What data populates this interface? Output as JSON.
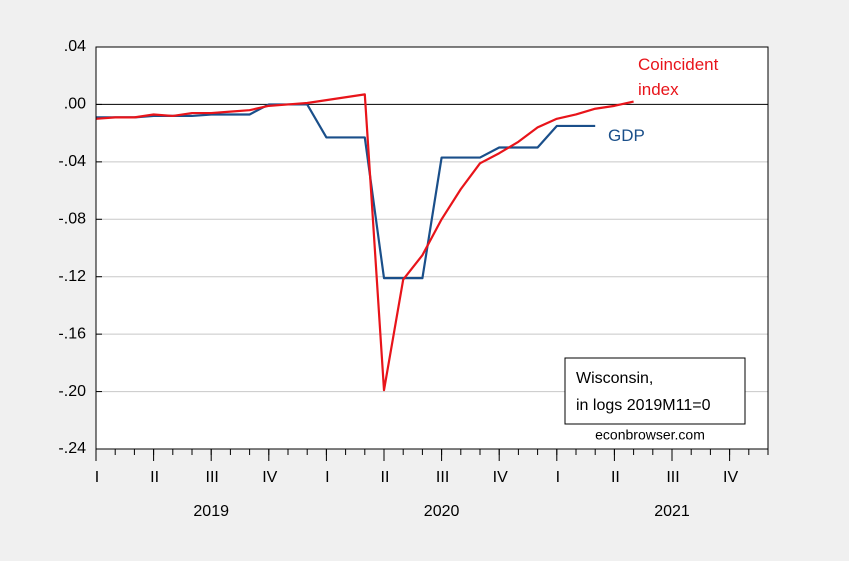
{
  "chart_data": {
    "type": "line",
    "x": [
      "2019-01",
      "2019-02",
      "2019-03",
      "2019-04",
      "2019-05",
      "2019-06",
      "2019-07",
      "2019-08",
      "2019-09",
      "2019-10",
      "2019-11",
      "2019-12",
      "2020-01",
      "2020-02",
      "2020-03",
      "2020-04",
      "2020-05",
      "2020-06",
      "2020-07",
      "2020-08",
      "2020-09",
      "2020-10",
      "2020-11",
      "2020-12",
      "2021-01",
      "2021-02",
      "2021-03",
      "2021-04",
      "2021-05",
      "2021-06",
      "2021-07",
      "2021-08",
      "2021-09",
      "2021-10",
      "2021-11",
      "2021-12"
    ],
    "series": [
      {
        "name": "Coincident index",
        "color": "#e8141a",
        "values": [
          -0.01,
          -0.009,
          -0.009,
          -0.007,
          -0.008,
          -0.006,
          -0.006,
          -0.005,
          -0.004,
          -0.001,
          0.0,
          0.001,
          0.003,
          0.005,
          0.007,
          -0.199,
          -0.122,
          -0.105,
          -0.08,
          -0.059,
          -0.041,
          -0.034,
          -0.026,
          -0.016,
          -0.01,
          -0.007,
          -0.003,
          -0.001,
          0.002,
          null,
          null,
          null,
          null,
          null,
          null,
          null
        ]
      },
      {
        "name": "GDP",
        "color": "#1a4f8a",
        "values": [
          -0.009,
          -0.009,
          -0.009,
          -0.008,
          -0.008,
          -0.008,
          -0.007,
          -0.007,
          -0.007,
          0.0,
          0.0,
          0.0,
          -0.023,
          -0.023,
          -0.023,
          -0.121,
          -0.121,
          -0.121,
          -0.037,
          -0.037,
          -0.037,
          -0.03,
          -0.03,
          -0.03,
          -0.015,
          -0.015,
          -0.015,
          null,
          null,
          null,
          null,
          null,
          null,
          null,
          null,
          null
        ]
      }
    ],
    "xticks": [
      {
        "value": "2019-01",
        "label": "I"
      },
      {
        "value": "2019-04",
        "label": "II"
      },
      {
        "value": "2019-07",
        "label": "III"
      },
      {
        "value": "2019-10",
        "label": "IV"
      },
      {
        "value": "2020-01",
        "label": "I"
      },
      {
        "value": "2020-04",
        "label": "II"
      },
      {
        "value": "2020-07",
        "label": "III"
      },
      {
        "value": "2020-10",
        "label": "IV"
      },
      {
        "value": "2021-01",
        "label": "I"
      },
      {
        "value": "2021-04",
        "label": "II"
      },
      {
        "value": "2021-07",
        "label": "III"
      },
      {
        "value": "2021-10",
        "label": "IV"
      }
    ],
    "year_labels": [
      {
        "value": "2019-07",
        "label": "2019"
      },
      {
        "value": "2020-07",
        "label": "2020"
      },
      {
        "value": "2021-07",
        "label": "2021"
      }
    ],
    "ylim": [
      -0.24,
      0.04
    ],
    "yticks": [
      {
        "value": 0.04,
        "label": ".04"
      },
      {
        "value": 0.0,
        "label": ".00"
      },
      {
        "value": -0.04,
        "label": "-.04"
      },
      {
        "value": -0.08,
        "label": "-.08"
      },
      {
        "value": -0.12,
        "label": "-.12"
      },
      {
        "value": -0.16,
        "label": "-.16"
      },
      {
        "value": -0.2,
        "label": "-.20"
      },
      {
        "value": -0.24,
        "label": "-.24"
      }
    ],
    "grid": true,
    "note": [
      "Wisconsin,",
      "in logs 2019M11=0"
    ],
    "source": "econbrowser.com"
  }
}
